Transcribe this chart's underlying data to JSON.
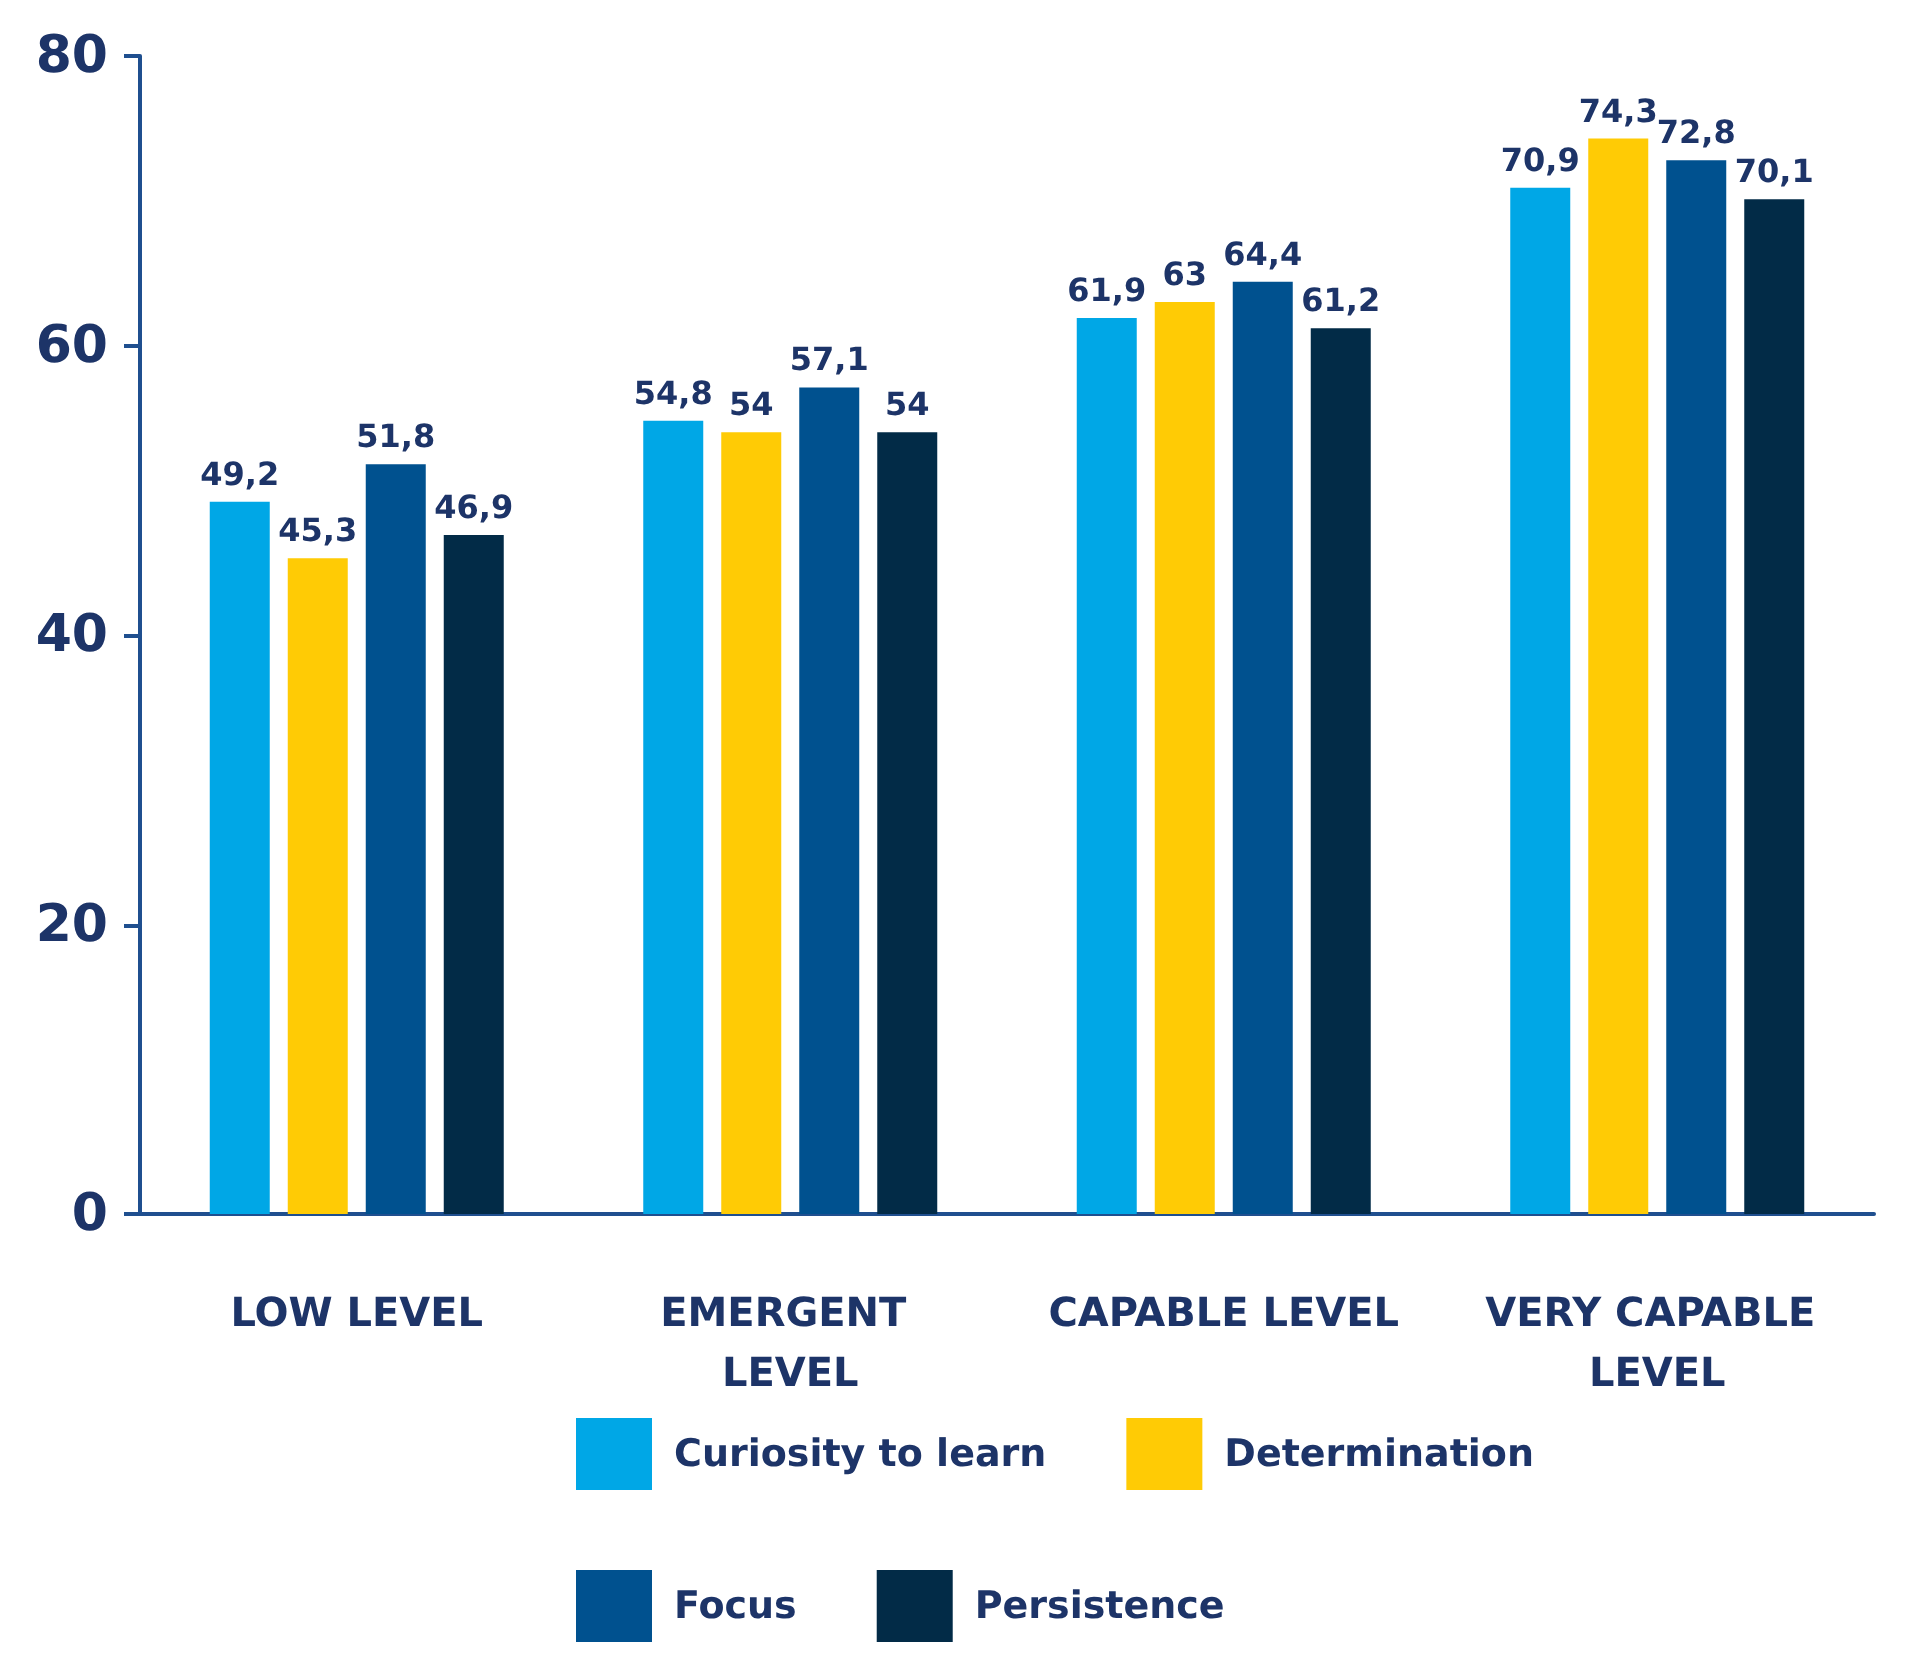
{
  "chart_data": {
    "type": "bar",
    "categories": [
      "LOW LEVEL",
      "EMERGENT LEVEL",
      "CAPABLE LEVEL",
      "VERY CAPABLE LEVEL"
    ],
    "series": [
      {
        "name": "Curiosity to learn",
        "color": "#00a7e6",
        "values": [
          49.2,
          54.8,
          61.9,
          70.9
        ],
        "value_labels": [
          "49,2",
          "54,8",
          "61,9",
          "70,9"
        ]
      },
      {
        "name": "Determination",
        "color": "#ffcb05",
        "values": [
          45.3,
          54,
          63,
          74.3
        ],
        "value_labels": [
          "45,3",
          "54",
          "63",
          "74,3"
        ]
      },
      {
        "name": "Focus",
        "color": "#00518f",
        "values": [
          51.8,
          57.1,
          64.4,
          72.8
        ],
        "value_labels": [
          "51,8",
          "57,1",
          "64,4",
          "72,8"
        ]
      },
      {
        "name": "Persistence",
        "color": "#022b47",
        "values": [
          46.9,
          54,
          61.2,
          70.1
        ],
        "value_labels": [
          "46,9",
          "54",
          "61,2",
          "70,1"
        ]
      }
    ],
    "ylim": [
      0,
      80
    ],
    "yticks": [
      0,
      20,
      40,
      60,
      80
    ],
    "grid": false,
    "legend": "bottom"
  }
}
